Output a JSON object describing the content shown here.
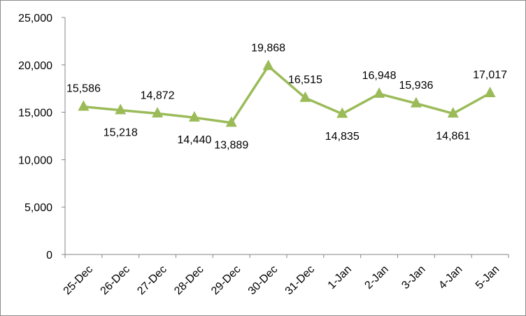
{
  "chart_data": {
    "type": "line",
    "title": "",
    "xlabel": "",
    "ylabel": "",
    "ylim": [
      0,
      25000
    ],
    "yticks": [
      0,
      5000,
      10000,
      15000,
      20000,
      25000
    ],
    "grid": false,
    "legend": "none",
    "categories": [
      "25-Dec",
      "26-Dec",
      "27-Dec",
      "28-Dec",
      "29-Dec",
      "30-Dec",
      "31-Dec",
      "1-Jan",
      "2-Jan",
      "3-Jan",
      "4-Jan",
      "5-Jan"
    ],
    "series": [
      {
        "values": [
          15586,
          15218,
          14872,
          14440,
          13889,
          19868,
          16515,
          14835,
          16948,
          15936,
          14861,
          17017
        ],
        "color": "#9bbb59",
        "marker": "triangle"
      }
    ],
    "data_label_position": [
      "above",
      "below",
      "above",
      "below",
      "below",
      "above",
      "above",
      "below",
      "above",
      "above",
      "below",
      "above"
    ]
  }
}
